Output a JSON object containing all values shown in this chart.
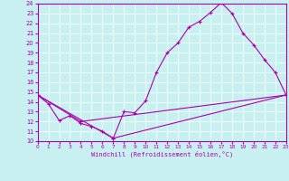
{
  "xlabel": "Windchill (Refroidissement éolien,°C)",
  "bg_color": "#c8f0f0",
  "line_color": "#aa00aa",
  "xlim": [
    0,
    23
  ],
  "ylim": [
    10,
    24
  ],
  "xticks": [
    0,
    1,
    2,
    3,
    4,
    5,
    6,
    7,
    8,
    9,
    10,
    11,
    12,
    13,
    14,
    15,
    16,
    17,
    18,
    19,
    20,
    21,
    22,
    23
  ],
  "yticks": [
    10,
    11,
    12,
    13,
    14,
    15,
    16,
    17,
    18,
    19,
    20,
    21,
    22,
    23,
    24
  ],
  "series": [
    [
      0,
      14.7
    ],
    [
      1,
      13.8
    ],
    [
      2,
      12.1
    ],
    [
      3,
      12.6
    ],
    [
      4,
      11.8
    ],
    [
      5,
      11.5
    ],
    [
      6,
      11.0
    ],
    [
      7,
      10.3
    ],
    [
      8,
      13.0
    ],
    [
      9,
      12.9
    ],
    [
      10,
      14.1
    ],
    [
      11,
      17.0
    ],
    [
      12,
      19.0
    ],
    [
      13,
      20.0
    ],
    [
      14,
      21.6
    ],
    [
      15,
      22.2
    ],
    [
      16,
      23.1
    ],
    [
      17,
      24.1
    ],
    [
      18,
      23.0
    ],
    [
      19,
      21.0
    ],
    [
      20,
      19.8
    ],
    [
      21,
      18.3
    ],
    [
      22,
      17.0
    ],
    [
      23,
      14.7
    ]
  ],
  "line2": [
    [
      0,
      14.7
    ],
    [
      7,
      10.3
    ],
    [
      23,
      14.7
    ]
  ],
  "line3": [
    [
      0,
      14.7
    ],
    [
      4,
      12.0
    ],
    [
      23,
      14.7
    ]
  ]
}
